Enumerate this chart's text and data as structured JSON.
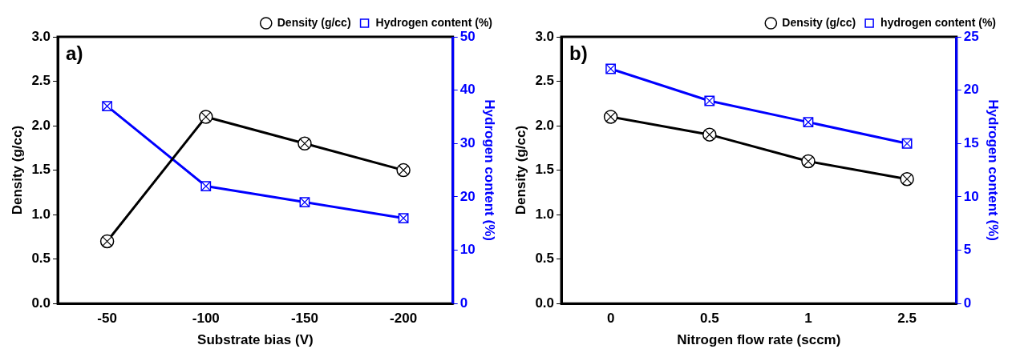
{
  "chart_data": [
    {
      "type": "line",
      "categories": [
        "-50",
        "-100",
        "-150",
        "-200"
      ],
      "xlabel": "Substrate bias (V)",
      "ylabel": "Density (g/cc)",
      "y2label": "Hydrogen content (%)",
      "annotations": [
        "a)"
      ],
      "series": [
        {
          "name": "Density (g/cc)",
          "color": "#000000",
          "marker": "circle",
          "values": [
            0.7,
            2.1,
            1.8,
            1.5
          ]
        },
        {
          "name": "Hydrogen content (%)",
          "color": "#0000ff",
          "marker": "square",
          "axis": "y2",
          "values": [
            37,
            22,
            19,
            16
          ]
        }
      ],
      "ylim": [
        0,
        3
      ],
      "yticks": [
        {
          "value": 0,
          "label": "0.0"
        },
        {
          "value": 0.5,
          "label": "0.5"
        },
        {
          "value": 1,
          "label": "1.0"
        },
        {
          "value": 1.5,
          "label": "1.5"
        },
        {
          "value": 2,
          "label": "2.0"
        },
        {
          "value": 2.5,
          "label": "2.5"
        },
        {
          "value": 3,
          "label": "3.0"
        }
      ],
      "y2lim": [
        0,
        50
      ],
      "y2ticks": [
        0,
        10,
        20,
        30,
        40,
        50
      ],
      "grid": false,
      "legend": "top right"
    },
    {
      "type": "line",
      "categories": [
        "0",
        "0.5",
        "1",
        "2.5"
      ],
      "xlabel": "Nitrogen flow rate (sccm)",
      "ylabel": "Density (g/cc)",
      "y2label": "Hydrogen content (%)",
      "annotations": [
        "b)"
      ],
      "series": [
        {
          "name": "Density (g/cc)",
          "color": "#000000",
          "marker": "circle",
          "values": [
            2.1,
            1.9,
            1.6,
            1.4
          ]
        },
        {
          "name": "hydrogen content (%)",
          "color": "#0000ff",
          "marker": "square",
          "axis": "y2",
          "values": [
            22,
            19,
            17,
            15
          ]
        }
      ],
      "ylim": [
        0,
        3
      ],
      "yticks": [
        {
          "value": 0,
          "label": "0.0"
        },
        {
          "value": 0.5,
          "label": "0.5"
        },
        {
          "value": 1,
          "label": "1.0"
        },
        {
          "value": 1.5,
          "label": "1.5"
        },
        {
          "value": 2,
          "label": "2.0"
        },
        {
          "value": 2.5,
          "label": "2.5"
        },
        {
          "value": 3,
          "label": "3.0"
        }
      ],
      "y2lim": [
        0,
        25
      ],
      "y2ticks": [
        0,
        5,
        10,
        15,
        20,
        25
      ],
      "grid": false,
      "legend": "top right"
    }
  ]
}
